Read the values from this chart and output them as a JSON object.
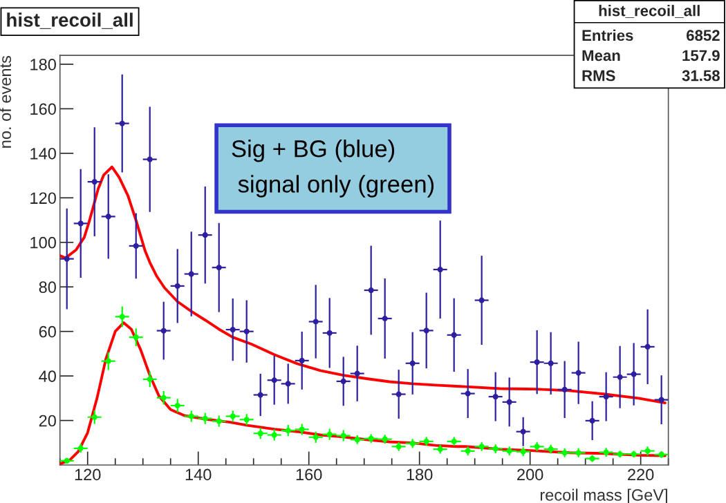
{
  "chart_data": {
    "type": "scatter",
    "title": "hist_recoil_all",
    "xlabel": "recoil mass [GeV]",
    "ylabel": "no. of events",
    "xlim": [
      115,
      225
    ],
    "ylim": [
      0,
      184
    ],
    "xticks": [
      120,
      140,
      160,
      180,
      200,
      220
    ],
    "yticks": [
      20,
      40,
      60,
      80,
      100,
      120,
      140,
      160,
      180
    ],
    "marker": "circle",
    "annotations": [
      "hist_recoil_all",
      "Entries",
      "6852",
      "Mean",
      "157.9",
      "RMS",
      "31.58",
      "Sig + BG (blue)",
      "signal only (green)"
    ],
    "series": [
      {
        "type": "scatter",
        "color": "#2e1f9e",
        "x": [
          116.25,
          118.75,
          121.25,
          123.75,
          126.25,
          128.75,
          131.25,
          133.75,
          136.25,
          138.75,
          141.25,
          143.75,
          146.25,
          148.75,
          151.25,
          153.75,
          156.25,
          158.75,
          161.25,
          163.75,
          166.25,
          168.75,
          171.25,
          173.75,
          176.25,
          178.75,
          181.25,
          183.75,
          186.25,
          188.75,
          191.25,
          193.75,
          196.25,
          198.75,
          201.25,
          203.75,
          206.25,
          208.75,
          211.25,
          213.75,
          216.25,
          218.75,
          221.25,
          223.75
        ],
        "values": [
          92.6,
          108.5,
          127.2,
          111.6,
          153.4,
          98.4,
          137.3,
          60.3,
          80.4,
          85.8,
          103.3,
          88.7,
          60.8,
          60.0,
          31.5,
          38.1,
          36.5,
          46.9,
          64.4,
          59.3,
          37.6,
          41.1,
          78.5,
          65.8,
          31.8,
          45.7,
          60.4,
          87.8,
          58.4,
          32.1,
          74.0,
          30.7,
          28.3,
          15.0,
          46.2,
          45.7,
          33.9,
          41.4,
          19.9,
          30.7,
          39.5,
          40.8,
          53.1,
          29.3
        ],
        "errors": [
          22.6,
          24.4,
          24.5,
          19,
          22,
          14.7,
          23.6,
          13,
          16.6,
          19,
          21.8,
          20,
          14,
          14,
          9.5,
          11,
          9,
          13,
          16.5,
          15.7,
          11,
          12.5,
          20,
          18,
          11,
          14,
          17,
          22,
          16.5,
          11,
          20,
          11,
          11,
          6.5,
          14.3,
          14,
          12.8,
          14,
          8.7,
          11,
          14,
          14,
          16.8,
          11
        ],
        "xerrors": [
          1.25,
          1.25,
          1.25,
          1.25,
          1.25,
          1.25,
          1.25,
          1.25,
          1.25,
          1.25,
          1.25,
          1.25,
          1.25,
          1.25,
          1.25,
          1.25,
          1.25,
          1.25,
          1.25,
          1.25,
          1.25,
          1.25,
          1.25,
          1.25,
          1.25,
          1.25,
          1.25,
          1.25,
          1.25,
          1.25,
          1.25,
          1.25,
          1.25,
          1.25,
          1.25,
          1.25,
          1.25,
          1.25,
          1.25,
          1.25,
          1.25,
          1.25,
          1.25,
          1.25
        ]
      },
      {
        "type": "scatter",
        "color": "#00ff00",
        "x": [
          116.25,
          118.75,
          121.25,
          123.75,
          126.25,
          128.75,
          131.25,
          133.75,
          136.25,
          138.75,
          141.25,
          143.75,
          146.25,
          148.75,
          151.25,
          153.75,
          156.25,
          158.75,
          161.25,
          163.75,
          166.25,
          168.75,
          171.25,
          173.75,
          176.25,
          178.75,
          181.25,
          183.75,
          186.25,
          188.75,
          191.25,
          193.75,
          196.25,
          198.75,
          201.25,
          203.75,
          206.25,
          208.75,
          211.25,
          213.75,
          216.25,
          218.75,
          221.25,
          223.75
        ],
        "values": [
          1.9,
          7.5,
          21.5,
          46.7,
          66.6,
          57.4,
          38.5,
          30.2,
          26.7,
          21.9,
          20.9,
          19.7,
          21.9,
          20.4,
          14.2,
          13.5,
          15.5,
          16.0,
          12.5,
          13.8,
          13.2,
          11.4,
          11.9,
          11.6,
          8.3,
          9.7,
          10.6,
          7.1,
          10.6,
          6.3,
          8.3,
          7.3,
          6.3,
          6.0,
          8.3,
          7.1,
          5.5,
          5.5,
          2.9,
          5.7,
          4.9,
          4.9,
          6.3,
          4.7
        ],
        "errors": [
          1.2,
          2,
          3,
          4,
          4.6,
          4,
          3.5,
          3,
          3,
          2.5,
          2.5,
          2.5,
          2.5,
          2.5,
          2.5,
          2.5,
          2.5,
          2.5,
          2.5,
          2.5,
          2.5,
          2,
          2,
          2,
          2,
          2,
          2,
          2,
          2,
          2,
          2,
          2,
          2,
          2,
          2,
          2,
          2,
          2,
          1.5,
          2,
          1.5,
          1.5,
          2,
          1.5
        ],
        "xerrors": [
          1.25,
          1.25,
          1.25,
          1.25,
          1.25,
          1.25,
          1.25,
          1.25,
          1.25,
          1.25,
          1.25,
          1.25,
          1.25,
          1.25,
          1.25,
          1.25,
          1.25,
          1.25,
          1.25,
          1.25,
          1.25,
          1.25,
          1.25,
          1.25,
          1.25,
          1.25,
          1.25,
          1.25,
          1.25,
          1.25,
          1.25,
          1.25,
          1.25,
          1.25,
          1.25,
          1.25,
          1.25,
          1.25,
          1.25,
          1.25,
          1.25,
          1.25,
          1.25,
          1.25
        ]
      },
      {
        "type": "line",
        "marker": "none",
        "color": "#ff0000",
        "x": [
          115,
          116,
          117.9,
          119.4,
          120.3,
          121.9,
          122.9,
          124.4,
          125.7,
          127.3,
          128.8,
          130.4,
          131.25,
          132.5,
          133.9,
          136.25,
          138.75,
          141.25,
          143.75,
          146.25,
          149.6,
          153.75,
          157.9,
          162.1,
          166.25,
          170.4,
          174.6,
          178.75,
          182.9,
          186.7,
          188.3,
          194.6,
          200.8,
          207.1,
          213.3,
          219.6,
          224.4
        ],
        "values": [
          94.0,
          93.0,
          96.6,
          102.3,
          109.5,
          124.0,
          130.2,
          133.9,
          129.2,
          120.9,
          109.5,
          96.1,
          91.0,
          84.8,
          79.6,
          73.4,
          69.0,
          65.1,
          61.0,
          57.4,
          54.3,
          49.6,
          45.5,
          42.4,
          40.3,
          38.8,
          37.4,
          36.5,
          35.9,
          35.4,
          35.2,
          34.3,
          34.1,
          33.4,
          31.9,
          30.0,
          27.9
        ]
      },
      {
        "type": "line",
        "marker": "none",
        "color": "#ff0000",
        "x": [
          115.1,
          116.7,
          118.3,
          120,
          121.7,
          123.3,
          125,
          126.5,
          127.9,
          129.6,
          131.25,
          132.9,
          135,
          137.5,
          141.7,
          145.8,
          148.9,
          153.75,
          157.9,
          162.1,
          166.25,
          170.4,
          174.6,
          178.75,
          182.9,
          186.7,
          188.3,
          194.6,
          200.8,
          207.1,
          213.3,
          219.6,
          224.4
        ],
        "values": [
          0.6,
          2.1,
          6.0,
          14.5,
          30,
          47.6,
          60,
          63.9,
          61,
          51.7,
          40.3,
          31.0,
          24.9,
          22.2,
          20.5,
          19.2,
          17.8,
          16.1,
          15.0,
          13.5,
          12.6,
          11.4,
          10.4,
          9.9,
          8.8,
          8.3,
          8.3,
          7.1,
          6.4,
          5.5,
          5.2,
          4.4,
          4.2
        ]
      }
    ]
  }
}
